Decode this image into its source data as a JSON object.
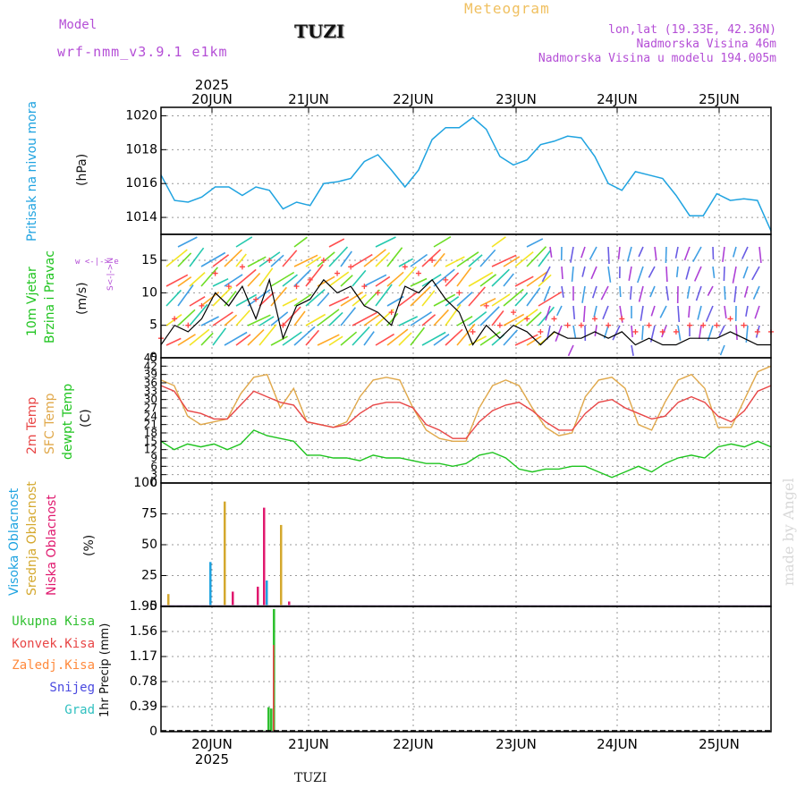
{
  "header": {
    "model_label": "Model",
    "model_name": "wrf-nmm_v3.9.1  e1km",
    "station": "TUZI",
    "meteogram_label": "Meteogram",
    "lonlat": "lon,lat (19.33E, 42.36N)",
    "elevation": "Nadmorska Visina 46m",
    "model_elevation": "Nadmorska Visina u modelu 194.005m"
  },
  "footer": {
    "station": "TUZI",
    "watermark": "made by Angel"
  },
  "time_axis": {
    "year": "2025",
    "days": [
      "20JUN",
      "21JUN",
      "22JUN",
      "23JUN",
      "24JUN",
      "25JUN"
    ]
  },
  "colors": {
    "pressure": "#1fa3e0",
    "gust": "#ff4444",
    "wind_speed": "#000000",
    "t2m": "#e84646",
    "sfc": "#e0a84a",
    "dewpt": "#1fc41f",
    "cloud_high": "#1fa3e0",
    "cloud_mid": "#d4a82e",
    "cloud_low": "#e0186e",
    "precip_total": "#30c030",
    "precip_conv": "#e84646",
    "precip_frozen": "#ff8a3d",
    "snow": "#4a4ae0",
    "hail": "#30c0c0"
  },
  "panels": {
    "pressure": {
      "labels": [
        "Pritisak na nivou mora"
      ],
      "unit": "(hPa)",
      "ticks": [
        "1014",
        "1016",
        "1018",
        "1020"
      ]
    },
    "wind": {
      "labels": [
        "10m Vjetar",
        "Brzina i Pravac"
      ],
      "unit": "(m/s)",
      "compass": [
        "w <-|-> e",
        "S<-|->N"
      ],
      "ticks": [
        "0",
        "5",
        "10",
        "15"
      ]
    },
    "temp": {
      "labels": [
        "2m Temp",
        "SFC Temp",
        "dewpt Temp"
      ],
      "unit": "(C)",
      "ticks": [
        "0",
        "3",
        "6",
        "9",
        "12",
        "15",
        "18",
        "21",
        "24",
        "27",
        "30",
        "33",
        "36",
        "39",
        "42",
        "45"
      ]
    },
    "cloud": {
      "labels": [
        "Visoka Oblacnost",
        "Srednja Oblacnost",
        "Niska Oblacnost"
      ],
      "unit": "(%)",
      "ticks": [
        "0",
        "25",
        "50",
        "75",
        "100"
      ]
    },
    "precip": {
      "labels": [
        "Ukupna Kisa",
        "Konvek.Kisa",
        "Zaledj.Kisa",
        "Snijeg",
        "Grad"
      ],
      "unit": "1hr Precip (mm)",
      "ticks": [
        "0",
        "0.39",
        "0.78",
        "1.17",
        "1.56",
        "1.95"
      ]
    }
  },
  "chart_data": [
    {
      "type": "line",
      "series": [
        {
          "values": [
            1016.5,
            1015.0,
            1014.9,
            1015.2,
            1015.8,
            1015.8,
            1015.3,
            1015.8,
            1015.6,
            1014.5,
            1014.9,
            1014.7,
            1016.0,
            1016.1,
            1016.3,
            1017.3,
            1017.7,
            1016.8,
            1015.8,
            1016.8,
            1018.6,
            1019.3,
            1019.3,
            1019.9,
            1019.2,
            1017.6,
            1017.1,
            1017.4,
            1018.3,
            1018.5,
            1018.8,
            1018.7,
            1017.6,
            1016.0,
            1015.6,
            1016.7,
            1016.5,
            1016.3,
            1015.3,
            1014.1,
            1014.1,
            1015.4,
            1015.0,
            1015.1,
            1015.0,
            1013.2
          ]
        }
      ],
      "ylim": [
        1013,
        1020.5
      ]
    },
    {
      "type": "line",
      "series": [
        {
          "values": [
            2,
            5,
            4,
            6,
            10,
            8,
            11,
            6,
            12,
            3,
            8,
            9,
            12,
            10,
            11,
            8,
            7,
            5,
            11,
            10,
            12,
            9,
            7,
            2,
            5,
            3,
            5,
            4,
            2,
            4,
            3,
            3,
            4,
            3,
            4,
            2,
            3,
            2,
            2,
            3,
            3,
            3,
            4,
            3,
            2,
            2
          ]
        },
        {
          "values": [
            3,
            6,
            5,
            8,
            13,
            11,
            14,
            9,
            15,
            5,
            11,
            12,
            15,
            13,
            14,
            11,
            10,
            7,
            14,
            13,
            15,
            12,
            10,
            4,
            8,
            5,
            7,
            6,
            4,
            6,
            5,
            5,
            6,
            5,
            6,
            4,
            5,
            4,
            4,
            5,
            5,
            5,
            6,
            5,
            4,
            4
          ]
        }
      ],
      "ylim": [
        0,
        19
      ]
    },
    {
      "type": "line",
      "series": [
        {
          "values": [
            35,
            33,
            26,
            25,
            23,
            23,
            28,
            33,
            31,
            29,
            28,
            22,
            21,
            20,
            21,
            25,
            28,
            29,
            29,
            27,
            21,
            19,
            16,
            16,
            22,
            26,
            28,
            29,
            26,
            22,
            19,
            19,
            25,
            29,
            30,
            27,
            25,
            23,
            24,
            29,
            31,
            29,
            24,
            22,
            26,
            33,
            35
          ]
        },
        {
          "values": [
            37,
            35,
            24,
            21,
            22,
            23,
            32,
            38,
            39,
            27,
            34,
            22,
            21,
            20,
            22,
            31,
            37,
            38,
            37,
            27,
            19,
            16,
            15,
            15,
            27,
            35,
            37,
            35,
            27,
            20,
            17,
            18,
            31,
            37,
            38,
            34,
            21,
            19,
            29,
            37,
            39,
            34,
            20,
            20,
            30,
            40,
            42
          ]
        },
        {
          "values": [
            15,
            12,
            14,
            13,
            14,
            12,
            14,
            19,
            17,
            16,
            15,
            10,
            10,
            9,
            9,
            8,
            10,
            9,
            9,
            8,
            7,
            7,
            6,
            7,
            10,
            11,
            9,
            5,
            4,
            5,
            5,
            6,
            6,
            4,
            2,
            4,
            6,
            4,
            7,
            9,
            10,
            9,
            13,
            14,
            13,
            15,
            13
          ]
        }
      ],
      "ylim": [
        0,
        45
      ]
    },
    {
      "type": "bar",
      "series": [
        {
          "values": [
            0,
            0,
            0,
            0,
            0,
            0,
            0,
            36,
            0,
            0,
            0,
            0,
            0,
            0,
            0,
            0,
            21,
            0,
            0,
            0
          ]
        },
        {
          "values": [
            10,
            0,
            0,
            0,
            0,
            0,
            0,
            0,
            0,
            85,
            0,
            0,
            0,
            0,
            0,
            0,
            0,
            0,
            66,
            0
          ]
        },
        {
          "values": [
            0,
            0,
            0,
            0,
            0,
            0,
            0,
            0,
            0,
            0,
            12,
            0,
            0,
            0,
            16,
            80,
            0,
            0,
            0,
            4
          ]
        }
      ],
      "ylim": [
        0,
        100
      ]
    },
    {
      "type": "bar",
      "series": [
        {
          "values": [
            0,
            0,
            0,
            0,
            0,
            0,
            0,
            0,
            0,
            0.02,
            0,
            0.38,
            0.36,
            1.91
          ]
        },
        {
          "values": [
            0,
            0,
            0,
            0,
            0,
            0,
            0,
            0,
            0,
            0,
            0,
            0,
            0,
            1.35
          ]
        }
      ],
      "ylim": [
        0,
        1.95
      ]
    }
  ]
}
